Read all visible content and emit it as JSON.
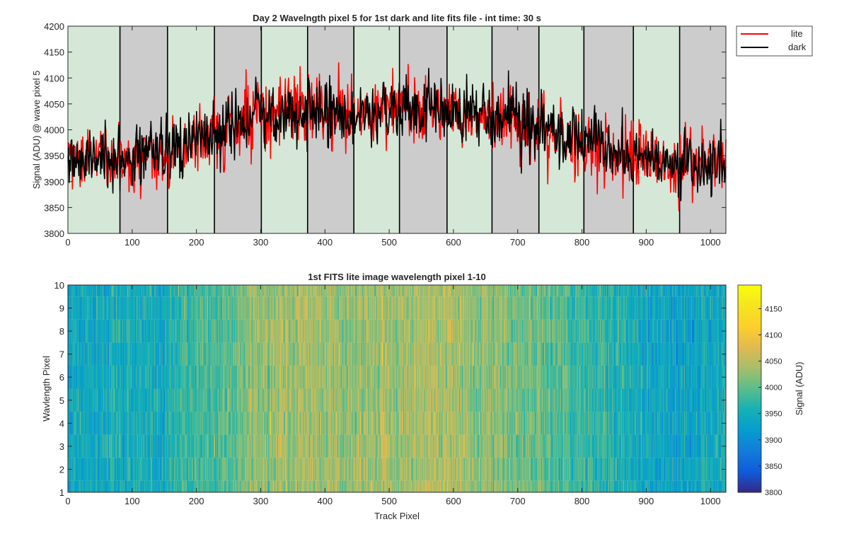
{
  "chart_data": [
    {
      "type": "line",
      "title": "Day 2 Wavelngth pixel 5 for 1st dark and lite fits file - int time: 30 s",
      "xlabel": "",
      "ylabel": "Signal (ADU) @ wave pixel 5",
      "xlim": [
        0,
        1024
      ],
      "ylim": [
        3800,
        4200
      ],
      "xticks": [
        0,
        100,
        200,
        300,
        400,
        500,
        600,
        700,
        800,
        900,
        1000
      ],
      "yticks": [
        3800,
        3850,
        3900,
        3950,
        4000,
        4050,
        4100,
        4150,
        4200
      ],
      "grid": false,
      "legend": "outside-top-right",
      "background_bands": {
        "boundaries": [
          0,
          81,
          155,
          228,
          301,
          373,
          445,
          516,
          590,
          660,
          733,
          803,
          880,
          952,
          1024
        ],
        "colors": [
          "#d5e8d8",
          "#cccccc"
        ]
      },
      "series": [
        {
          "name": "lite",
          "color": "#ff0000",
          "trend": [
            [
              0,
              3940
            ],
            [
              80,
              3950
            ],
            [
              150,
              3955
            ],
            [
              230,
              3990
            ],
            [
              300,
              4030
            ],
            [
              380,
              4035
            ],
            [
              450,
              4030
            ],
            [
              520,
              4040
            ],
            [
              600,
              4040
            ],
            [
              700,
              4015
            ],
            [
              780,
              3985
            ],
            [
              850,
              3955
            ],
            [
              950,
              3935
            ],
            [
              1024,
              3940
            ]
          ],
          "noise_amplitude": 38,
          "n_points": 1024
        },
        {
          "name": "dark",
          "color": "#000000",
          "trend": [
            [
              0,
              3940
            ],
            [
              80,
              3950
            ],
            [
              150,
              3955
            ],
            [
              230,
              3990
            ],
            [
              300,
              4030
            ],
            [
              380,
              4035
            ],
            [
              450,
              4030
            ],
            [
              520,
              4040
            ],
            [
              600,
              4040
            ],
            [
              700,
              4015
            ],
            [
              780,
              3985
            ],
            [
              850,
              3955
            ],
            [
              950,
              3935
            ],
            [
              1024,
              3940
            ]
          ],
          "noise_amplitude": 32,
          "n_points": 1024
        }
      ]
    },
    {
      "type": "heatmap",
      "title": "1st FITS lite image wavelength pixel 1-10",
      "xlabel": "Track Pixel",
      "ylabel": "Wavlength Pixel",
      "xlim": [
        0,
        1024
      ],
      "ylim": [
        1,
        10
      ],
      "xticks": [
        0,
        100,
        200,
        300,
        400,
        500,
        600,
        700,
        800,
        900,
        1000
      ],
      "yticks": [
        1,
        2,
        3,
        4,
        5,
        6,
        7,
        8,
        9,
        10
      ],
      "colorbar": {
        "label": "Signal (ADU)",
        "range": [
          3800,
          4195
        ],
        "ticks": [
          3800,
          3850,
          3900,
          3950,
          4000,
          4050,
          4100,
          4150
        ]
      },
      "colormap": "parula",
      "rows": 10,
      "columns": 1024,
      "trend": [
        [
          0,
          3940
        ],
        [
          80,
          3950
        ],
        [
          150,
          3955
        ],
        [
          230,
          3990
        ],
        [
          300,
          4030
        ],
        [
          380,
          4035
        ],
        [
          450,
          4030
        ],
        [
          520,
          4040
        ],
        [
          600,
          4040
        ],
        [
          700,
          4015
        ],
        [
          780,
          3985
        ],
        [
          850,
          3955
        ],
        [
          950,
          3935
        ],
        [
          1024,
          3940
        ]
      ],
      "noise_amplitude": 40
    }
  ]
}
